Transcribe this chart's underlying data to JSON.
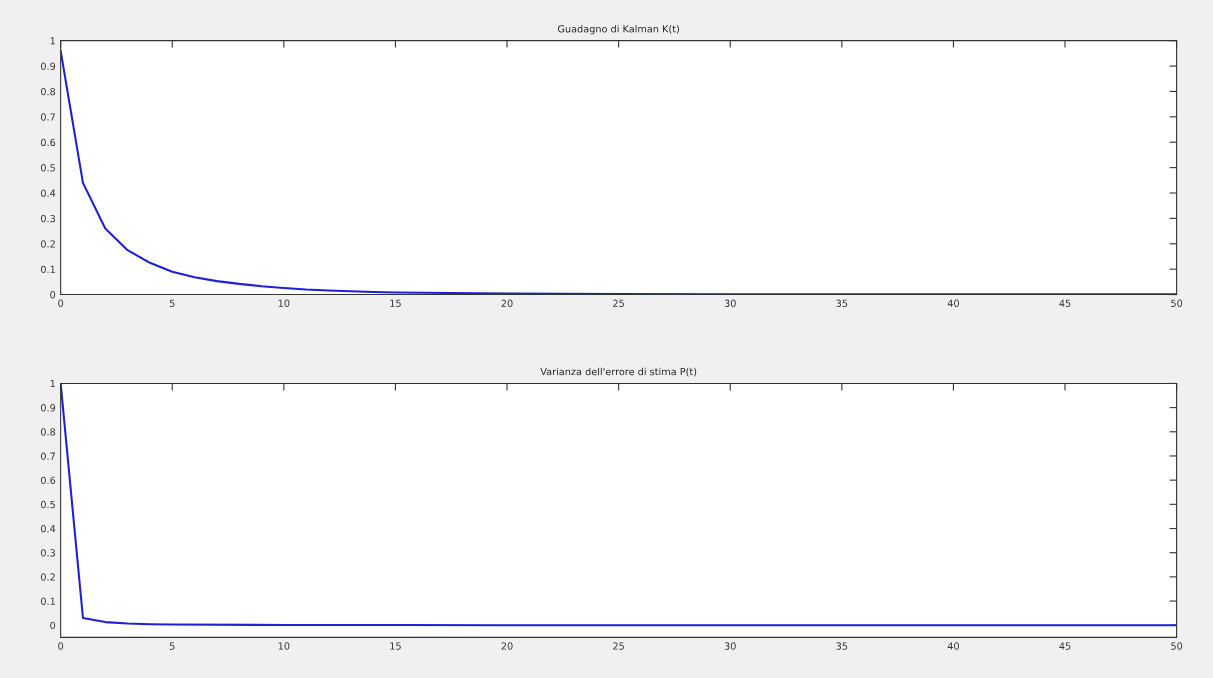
{
  "chart_data": [
    {
      "type": "line",
      "title": "Guadagno di Kalman K(t)",
      "xlim": [
        0,
        50
      ],
      "xticks": [
        0,
        5,
        10,
        15,
        20,
        25,
        30,
        35,
        40,
        45,
        50
      ],
      "ylim": [
        0,
        1
      ],
      "yticks": [
        0,
        0.1,
        0.2,
        0.3,
        0.4,
        0.5,
        0.6,
        0.7,
        0.8,
        0.9,
        1
      ],
      "grid": false,
      "legend": false,
      "series": [
        {
          "color": "#1f1fd8",
          "x": [
            0,
            1,
            2,
            3,
            4,
            5,
            6,
            7,
            8,
            9,
            10,
            11,
            12,
            13,
            14,
            15,
            20,
            25,
            30,
            35,
            40,
            45,
            50
          ],
          "values": [
            0.96,
            0.44,
            0.26,
            0.175,
            0.125,
            0.09,
            0.068,
            0.053,
            0.042,
            0.033,
            0.026,
            0.02,
            0.016,
            0.013,
            0.01,
            0.008,
            0.004,
            0.002,
            0.001,
            0.001,
            0.001,
            0.001,
            0.001
          ]
        }
      ]
    },
    {
      "type": "line",
      "title": "Varianza dell'errore di stima P(t)",
      "xlim": [
        0,
        50
      ],
      "xticks": [
        0,
        5,
        10,
        15,
        20,
        25,
        30,
        35,
        40,
        45,
        50
      ],
      "ylim": [
        -0.05,
        1
      ],
      "yticks": [
        0,
        0.1,
        0.2,
        0.3,
        0.4,
        0.5,
        0.6,
        0.7,
        0.8,
        0.9,
        1
      ],
      "grid": false,
      "legend": false,
      "series": [
        {
          "color": "#1f1fd8",
          "x": [
            0,
            1,
            2,
            3,
            4,
            5,
            10,
            15,
            20,
            25,
            30,
            35,
            40,
            45,
            50
          ],
          "values": [
            1,
            0.03,
            0.013,
            0.007,
            0.004,
            0.003,
            0.001,
            0.001,
            0,
            0,
            0,
            0,
            0,
            0,
            0
          ]
        }
      ]
    }
  ]
}
